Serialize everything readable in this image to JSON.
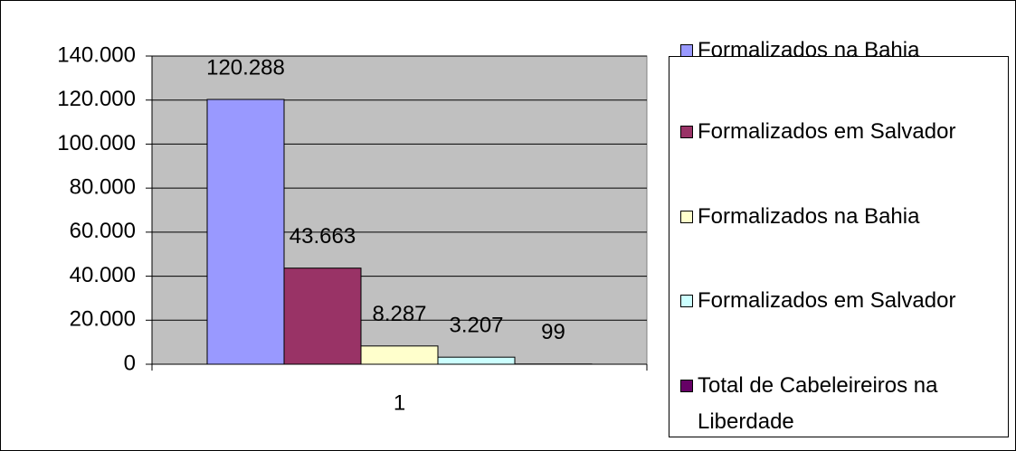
{
  "chart_data": {
    "type": "bar",
    "categories": [
      "1"
    ],
    "series": [
      {
        "name": "Formalizados na Bahia",
        "color": "#9999FF",
        "values": [
          120288
        ],
        "value_labels": [
          "120.288"
        ]
      },
      {
        "name": "Formalizados em Salvador",
        "color": "#993366",
        "values": [
          43663
        ],
        "value_labels": [
          "43.663"
        ]
      },
      {
        "name": "Formalizados na Bahia",
        "color": "#FFFFCC",
        "values": [
          8287
        ],
        "value_labels": [
          "8.287"
        ]
      },
      {
        "name": "Formalizados em Salvador",
        "color": "#CCFFFF",
        "values": [
          3207
        ],
        "value_labels": [
          "3.207"
        ]
      },
      {
        "name": "Total de Cabeleireiros na Liberdade",
        "color": "#660066",
        "values": [
          99
        ],
        "value_labels": [
          "99"
        ]
      }
    ],
    "ylim": [
      0,
      140000
    ],
    "yticks": [
      0,
      {
        "value": 20000,
        "label": "20.000"
      },
      {
        "value": 40000,
        "label": "40.000"
      },
      {
        "value": 60000,
        "label": "60.000"
      },
      {
        "value": 80000,
        "label": "80.000"
      },
      {
        "value": 100000,
        "label": "100.000"
      },
      {
        "value": 120000,
        "label": "120.000"
      },
      {
        "value": 140000,
        "label": "140.000"
      }
    ],
    "grid": true,
    "legend": "right"
  }
}
